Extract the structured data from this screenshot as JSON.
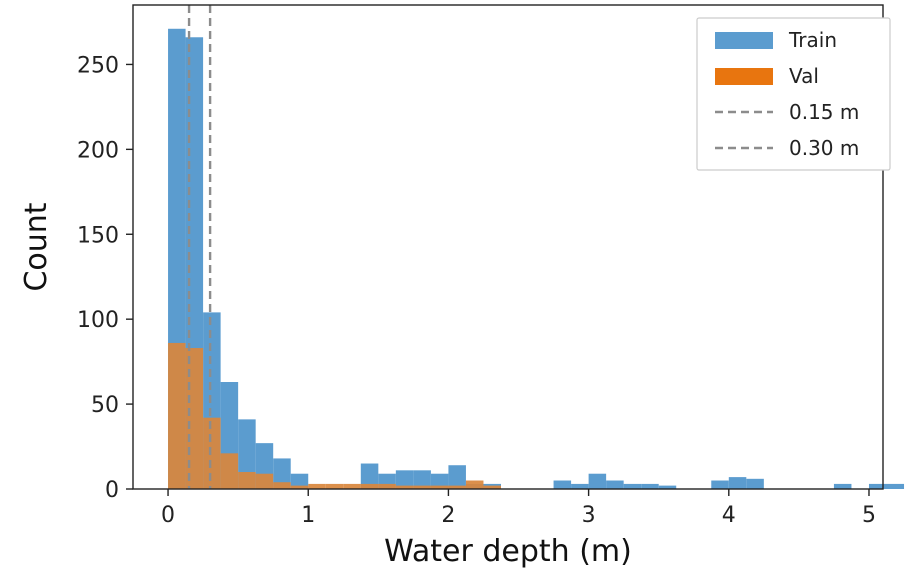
{
  "chart_data": {
    "type": "bar",
    "title": "",
    "xlabel": "Water depth (m)",
    "ylabel": "Count",
    "xlim": [
      -0.25,
      5.1
    ],
    "ylim": [
      0,
      285
    ],
    "xticks": [
      0,
      1,
      2,
      3,
      4,
      5
    ],
    "yticks": [
      0,
      50,
      100,
      150,
      200,
      250
    ],
    "bin_width": 0.125,
    "bin_start": 0,
    "series": [
      {
        "name": "Train",
        "color": "#5b9ccf",
        "values": [
          271,
          266,
          104,
          63,
          41,
          27,
          18,
          9,
          0,
          0,
          0,
          15,
          9,
          11,
          11,
          9,
          14,
          3,
          3,
          0,
          0,
          0,
          5,
          3,
          9,
          5,
          3,
          3,
          2,
          0,
          0,
          5,
          7,
          6,
          0,
          0,
          0,
          0,
          3,
          0,
          3,
          3,
          0,
          4,
          0,
          0,
          3,
          0,
          0,
          0,
          0,
          2,
          0,
          0,
          0,
          0,
          0,
          0,
          3
        ]
      },
      {
        "name": "Val",
        "color": "#d9873d",
        "values": [
          86,
          83,
          42,
          21,
          10,
          9,
          4,
          2,
          3,
          3,
          3,
          3,
          3,
          2,
          2,
          2,
          2,
          5,
          2,
          0,
          0,
          0,
          0,
          0,
          0,
          0,
          0,
          0,
          0,
          0,
          0,
          0,
          0,
          0,
          0,
          0,
          0,
          0,
          0,
          0,
          0,
          0,
          0,
          0,
          0,
          0,
          0,
          0,
          0,
          0,
          0,
          0,
          0,
          0,
          0,
          0,
          0,
          0,
          0
        ]
      }
    ],
    "vlines": [
      {
        "name": "0.15 m",
        "x": 0.15,
        "color": "#8c8c8c",
        "style": "dashed"
      },
      {
        "name": "0.30 m",
        "x": 0.3,
        "color": "#8c8c8c",
        "style": "dashed"
      }
    ],
    "legend": {
      "placement": "top-right",
      "entries": [
        {
          "label": "Train",
          "kind": "patch",
          "color": "#5b9ccf"
        },
        {
          "label": "Val",
          "kind": "patch",
          "color": "#e8750f"
        },
        {
          "label": "0.15 m",
          "kind": "dashed-line",
          "color": "#8c8c8c"
        },
        {
          "label": "0.30 m",
          "kind": "dashed-line",
          "color": "#8c8c8c"
        }
      ]
    }
  }
}
